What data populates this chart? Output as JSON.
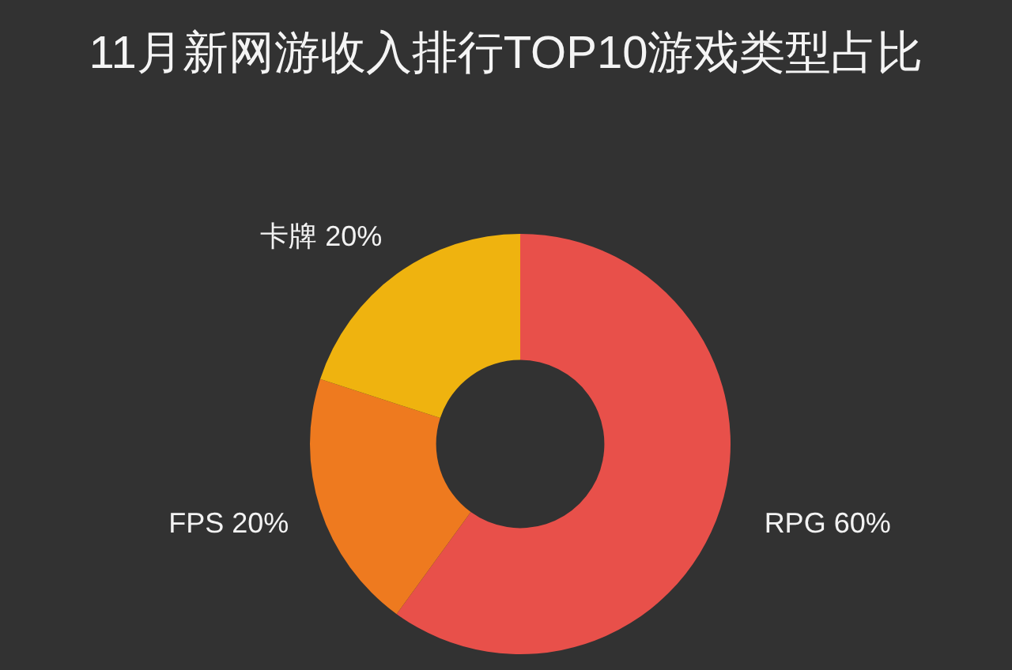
{
  "chart_data": {
    "type": "donut",
    "title": "11月新网游收入排行TOP10游戏类型占比",
    "categories": [
      "RPG",
      "FPS",
      "卡牌"
    ],
    "values": [
      60,
      20,
      20
    ],
    "colors": [
      "#e8504a",
      "#ee7a1f",
      "#efb30f"
    ],
    "value_labels": [
      "60%",
      "20%",
      "20%"
    ]
  }
}
